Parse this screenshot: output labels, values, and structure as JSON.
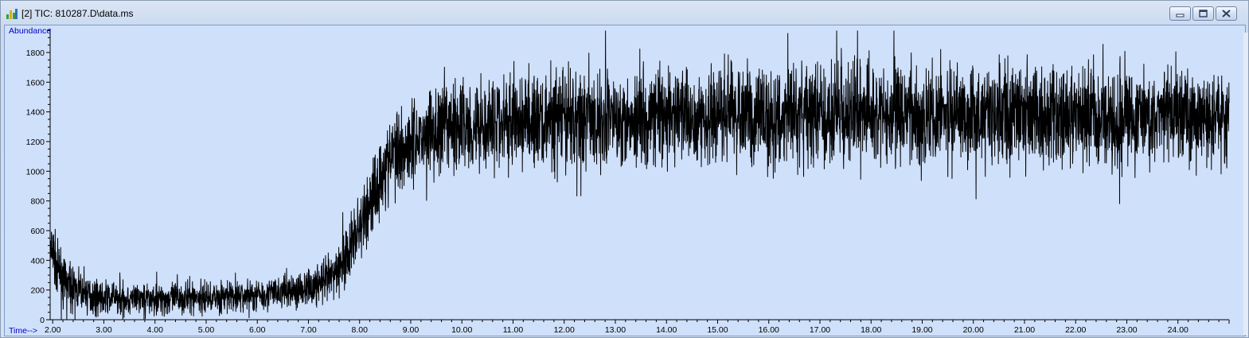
{
  "window": {
    "title": "[2] TIC: 810287.D\\data.ms",
    "icon": "chromatogram-app-icon",
    "buttons": {
      "minimize": "minimize-icon",
      "maximize": "restore-icon",
      "close": "close-icon"
    }
  },
  "colors": {
    "plot_background": "#cfe0fb",
    "trace": "#000000",
    "axis_name": "#0000c8"
  },
  "chart_data": {
    "type": "line",
    "ylabel": "Abundance",
    "xlabel": "Time-->",
    "xlim": [
      1.95,
      25.0
    ],
    "ylim": [
      0,
      1950
    ],
    "yticks": [
      0,
      200,
      400,
      600,
      800,
      1000,
      1200,
      1400,
      1600,
      1800
    ],
    "xticks": [
      2,
      3,
      4,
      5,
      6,
      7,
      8,
      9,
      10,
      11,
      12,
      13,
      14,
      15,
      16,
      17,
      18,
      19,
      20,
      21,
      22,
      23,
      24
    ],
    "ytick_labels": [
      "0",
      "200",
      "400",
      "600",
      "800",
      "1000",
      "1200",
      "1400",
      "1600",
      "1800"
    ],
    "xtick_labels": [
      "2.00",
      "3.00",
      "4.00",
      "5.00",
      "6.00",
      "7.00",
      "8.00",
      "9.00",
      "10.00",
      "11.00",
      "12.00",
      "13.00",
      "14.00",
      "15.00",
      "16.00",
      "17.00",
      "18.00",
      "19.00",
      "20.00",
      "21.00",
      "22.00",
      "23.00",
      "24.00"
    ],
    "grid": false,
    "series": [
      {
        "x": [
          1.95,
          2.0,
          2.1,
          2.2,
          2.3,
          2.5,
          2.75,
          3.0,
          3.5,
          4.0,
          4.5,
          5.0,
          5.5,
          6.0,
          6.5,
          7.0,
          7.25,
          7.5,
          7.75,
          8.0,
          8.25,
          8.5,
          8.75,
          9.0,
          9.25,
          9.5,
          10.0,
          10.5,
          11.0,
          11.5,
          12.0,
          13.0,
          14.0,
          15.0,
          16.0,
          17.0,
          18.0,
          19.0,
          20.0,
          21.0,
          22.0,
          23.0,
          24.0,
          25.0
        ],
        "y": [
          430,
          450,
          330,
          280,
          230,
          190,
          165,
          150,
          140,
          140,
          145,
          150,
          155,
          170,
          190,
          210,
          240,
          300,
          430,
          620,
          820,
          1030,
          1150,
          1210,
          1240,
          1280,
          1310,
          1330,
          1330,
          1340,
          1350,
          1360,
          1370,
          1370,
          1370,
          1375,
          1380,
          1380,
          1380,
          1380,
          1380,
          1380,
          1380,
          1380
        ],
        "noise": [
          160,
          160,
          140,
          120,
          110,
          100,
          90,
          85,
          85,
          85,
          85,
          85,
          85,
          85,
          90,
          95,
          110,
          130,
          160,
          190,
          210,
          220,
          225,
          230,
          235,
          240,
          245,
          250,
          250,
          255,
          255,
          255,
          255,
          255,
          255,
          255,
          255,
          255,
          255,
          255,
          255,
          255,
          255,
          255
        ]
      }
    ]
  }
}
